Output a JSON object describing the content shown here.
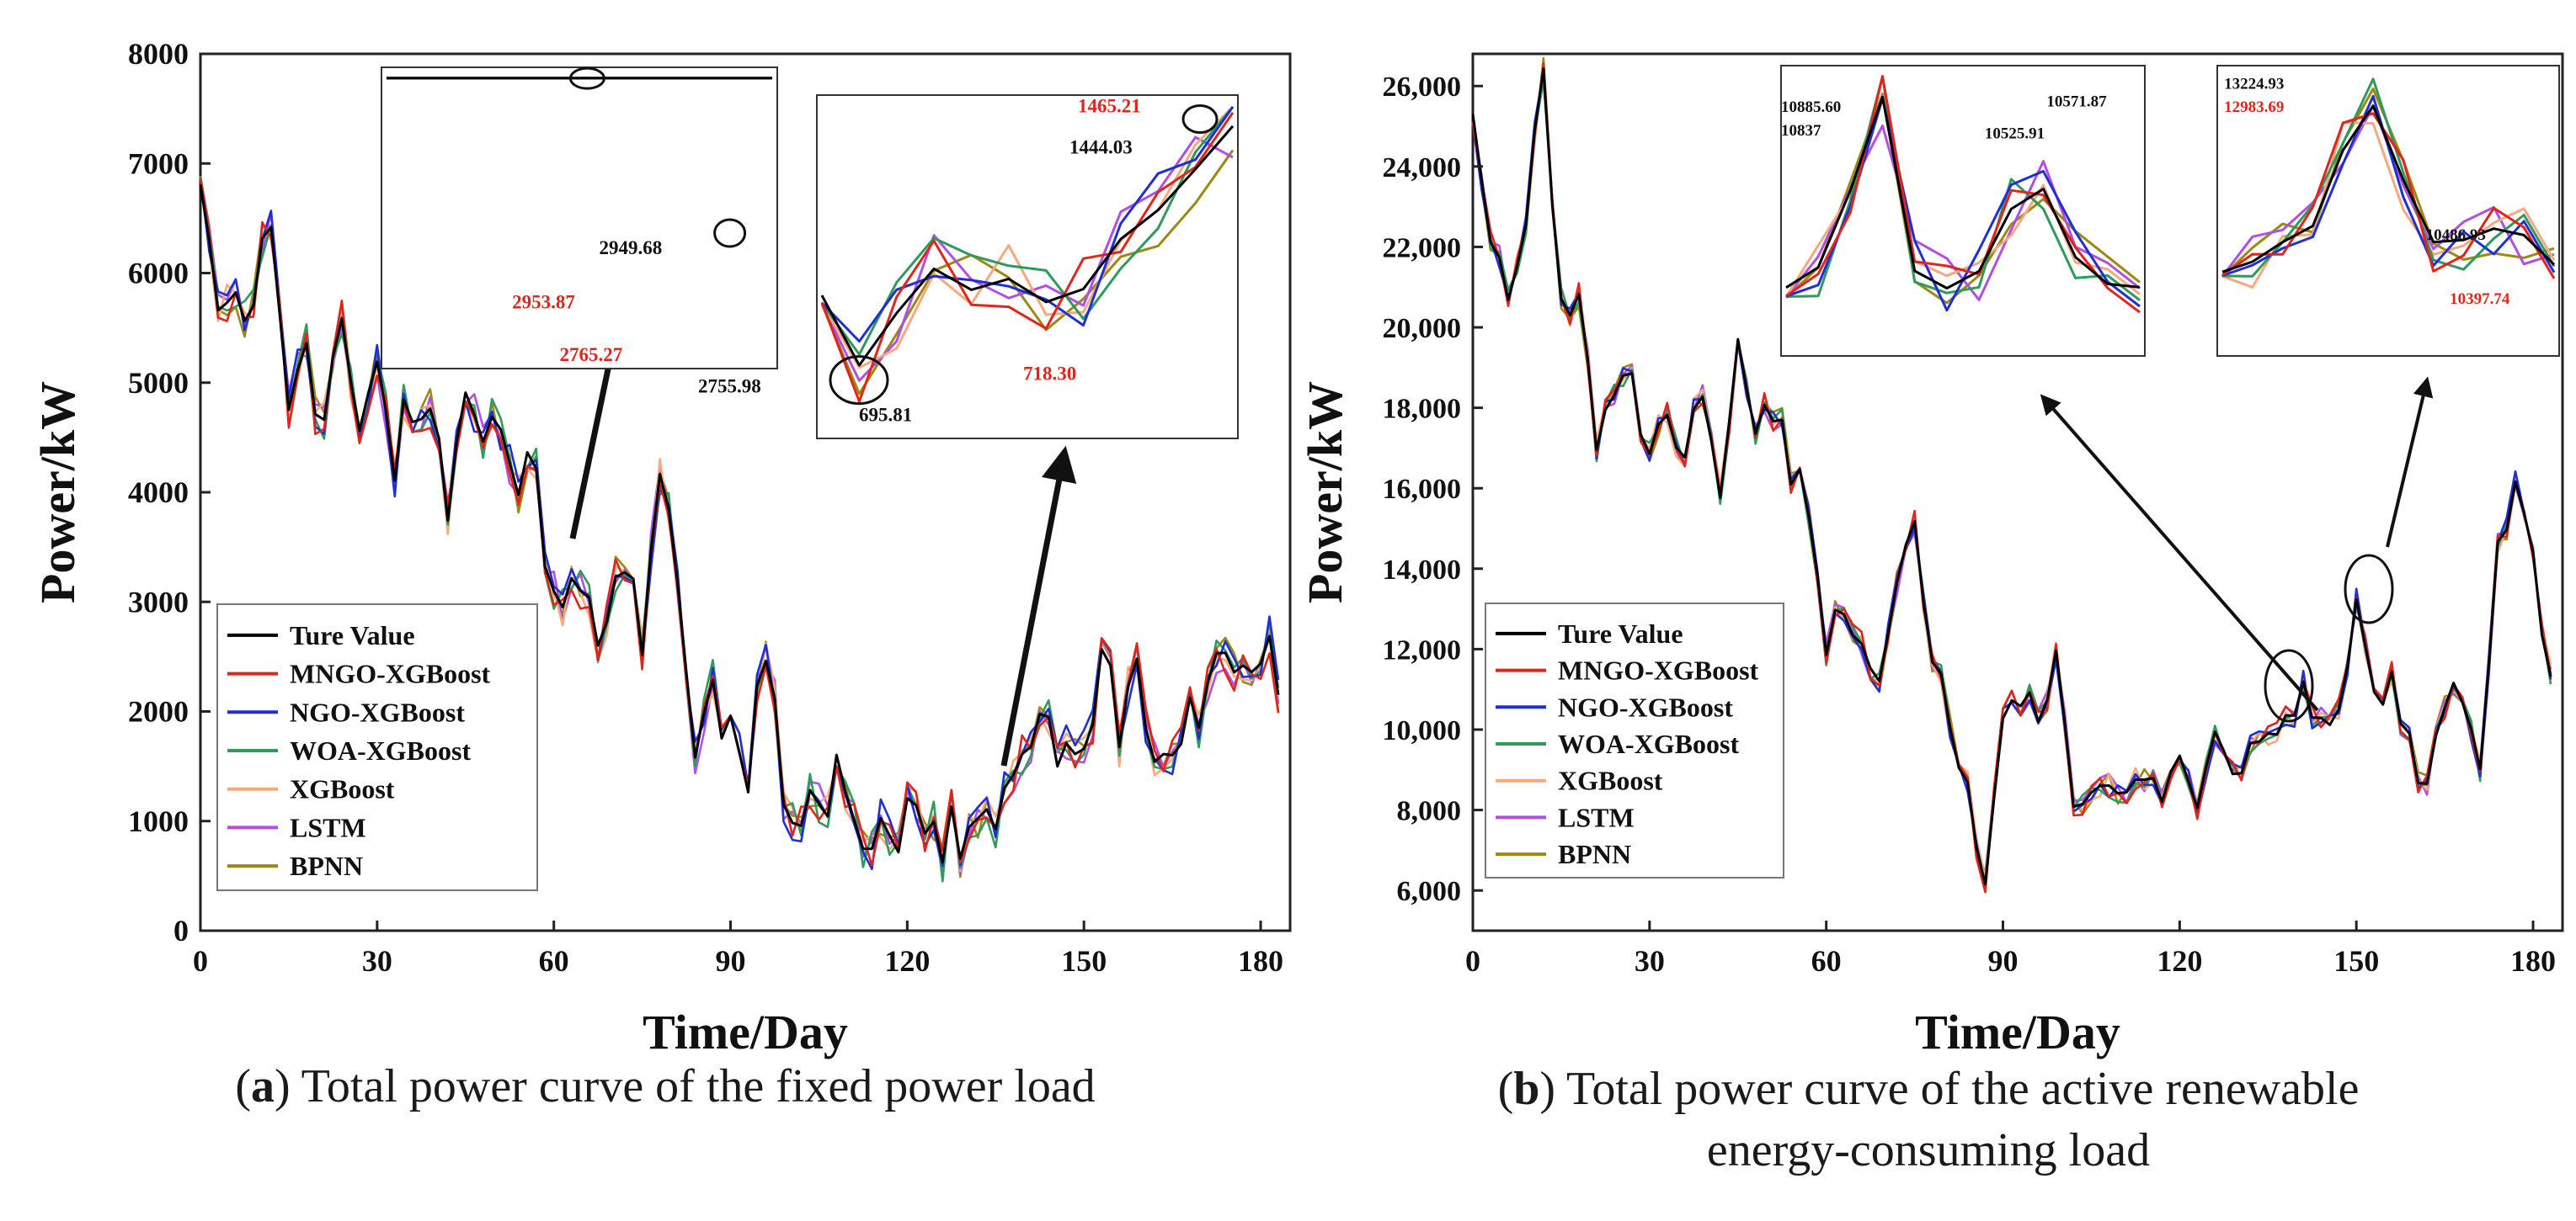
{
  "colors": {
    "Ture Value": "#000000",
    "MNGO-XGBoost": "#e3241b",
    "NGO-XGBoost": "#1f2fd6",
    "WOA-XGBoost": "#2e9a5c",
    "XGBoost": "#f5a97f",
    "LSTM": "#b24ee6",
    "BPNN": "#9c8a10",
    "highlight_red": "#e3241b",
    "frame": "#222222"
  },
  "chart_data": [
    {
      "id": "a",
      "type": "line",
      "caption_label": "a",
      "caption_text": "Total power curve of the fixed power load",
      "xlabel": "Time/Day",
      "ylabel": "Power/kW",
      "xlim": [
        0,
        185
      ],
      "ylim": [
        0,
        8000
      ],
      "xticks": [
        0,
        30,
        60,
        90,
        120,
        150,
        180
      ],
      "yticks": [
        0,
        1000,
        2000,
        3000,
        4000,
        5000,
        6000,
        7000,
        8000
      ],
      "ytick_labels": [
        "0",
        "1000",
        "2000",
        "3000",
        "4000",
        "5000",
        "6000",
        "7000",
        "8000"
      ],
      "legend": [
        "Ture Value",
        "MNGO-XGBoost",
        "NGO-XGBoost",
        "WOA-XGBoost",
        "XGBoost",
        "LSTM",
        "BPNN"
      ],
      "legend_position": "bottom-left",
      "x": [
        0,
        3,
        6,
        9,
        12,
        15,
        18,
        21,
        24,
        27,
        30,
        33,
        36,
        39,
        42,
        45,
        48,
        51,
        54,
        57,
        60,
        63,
        66,
        69,
        72,
        75,
        78,
        81,
        84,
        87,
        90,
        93,
        96,
        99,
        102,
        105,
        108,
        111,
        114,
        117,
        120,
        123,
        126,
        129,
        132,
        135,
        138,
        141,
        144,
        147,
        150,
        153,
        156,
        159,
        162,
        165,
        168,
        171,
        174,
        177,
        180,
        183
      ],
      "true_values": [
        6950,
        5600,
        5700,
        5500,
        6600,
        5000,
        5200,
        4800,
        5300,
        4700,
        5000,
        4400,
        4700,
        4500,
        3900,
        5000,
        4500,
        4400,
        4200,
        4000,
        2900,
        3300,
        3100,
        2600,
        3500,
        2500,
        3900,
        3200,
        1500,
        2300,
        1700,
        1500,
        2500,
        1200,
        1200,
        1000,
        1600,
        900,
        950,
        850,
        1000,
        900,
        800,
        950,
        900,
        1100,
        1600,
        1900,
        1700,
        1800,
        1600,
        2600,
        1900,
        2300,
        1300,
        1800,
        2200,
        2000,
        2600,
        2300,
        2500,
        2400
      ],
      "insets": [
        {
          "annotations": [
            "2949.68",
            "2953.87",
            "2765.27",
            "2755.98"
          ]
        },
        {
          "annotations": [
            "1465.21",
            "1444.03",
            "718.30",
            "695.81"
          ]
        }
      ]
    },
    {
      "id": "b",
      "type": "line",
      "caption_label": "b",
      "caption_text_line1": "Total power curve of the active renewable",
      "caption_text_line2": "energy-consuming load",
      "xlabel": "Time/Day",
      "ylabel": "Power/kW",
      "xlim": [
        0,
        185
      ],
      "ylim": [
        5000,
        26800
      ],
      "xticks": [
        0,
        30,
        60,
        90,
        120,
        150,
        180
      ],
      "yticks": [
        6000,
        8000,
        10000,
        12000,
        14000,
        16000,
        18000,
        20000,
        22000,
        24000,
        26000
      ],
      "ytick_labels": [
        "6,000",
        "8,000",
        "10,000",
        "12,000",
        "14,000",
        "16,000",
        "18,000",
        "20,000",
        "22,000",
        "24,000",
        "26,000"
      ],
      "legend": [
        "Ture Value",
        "MNGO-XGBoost",
        "NGO-XGBoost",
        "WOA-XGBoost",
        "XGBoost",
        "LSTM",
        "BPNN"
      ],
      "legend_position": "bottom-left",
      "x": [
        0,
        3,
        6,
        9,
        12,
        15,
        18,
        21,
        24,
        27,
        30,
        33,
        36,
        39,
        42,
        45,
        48,
        51,
        54,
        57,
        60,
        63,
        66,
        69,
        72,
        75,
        78,
        81,
        84,
        87,
        90,
        93,
        96,
        99,
        102,
        105,
        108,
        111,
        114,
        117,
        120,
        123,
        126,
        129,
        132,
        135,
        138,
        141,
        144,
        147,
        150,
        153,
        156,
        159,
        162,
        165,
        168,
        171,
        174,
        177,
        180,
        183
      ],
      "true_values": [
        25500,
        22500,
        20500,
        23000,
        26000,
        21000,
        20500,
        17000,
        18000,
        19000,
        16500,
        18000,
        17000,
        18500,
        16000,
        19500,
        17500,
        18000,
        16500,
        15500,
        12000,
        13000,
        12500,
        11500,
        14000,
        15000,
        12000,
        10500,
        8500,
        6500,
        10500,
        11000,
        10000,
        12000,
        8500,
        8500,
        9000,
        8000,
        9000,
        8500,
        9000,
        8500,
        9500,
        8500,
        9500,
        10000,
        10500,
        11000,
        10000,
        10500,
        13500,
        10500,
        11000,
        9500,
        8500,
        10500,
        11000,
        9500,
        14500,
        16000,
        14000,
        11500
      ],
      "insets": [
        {
          "annotations": [
            "10885.60",
            "10837",
            "10571.87",
            "10525.91"
          ]
        },
        {
          "annotations": [
            "13224.93",
            "12983.69",
            "10486.93",
            "10397.74"
          ]
        }
      ]
    }
  ]
}
